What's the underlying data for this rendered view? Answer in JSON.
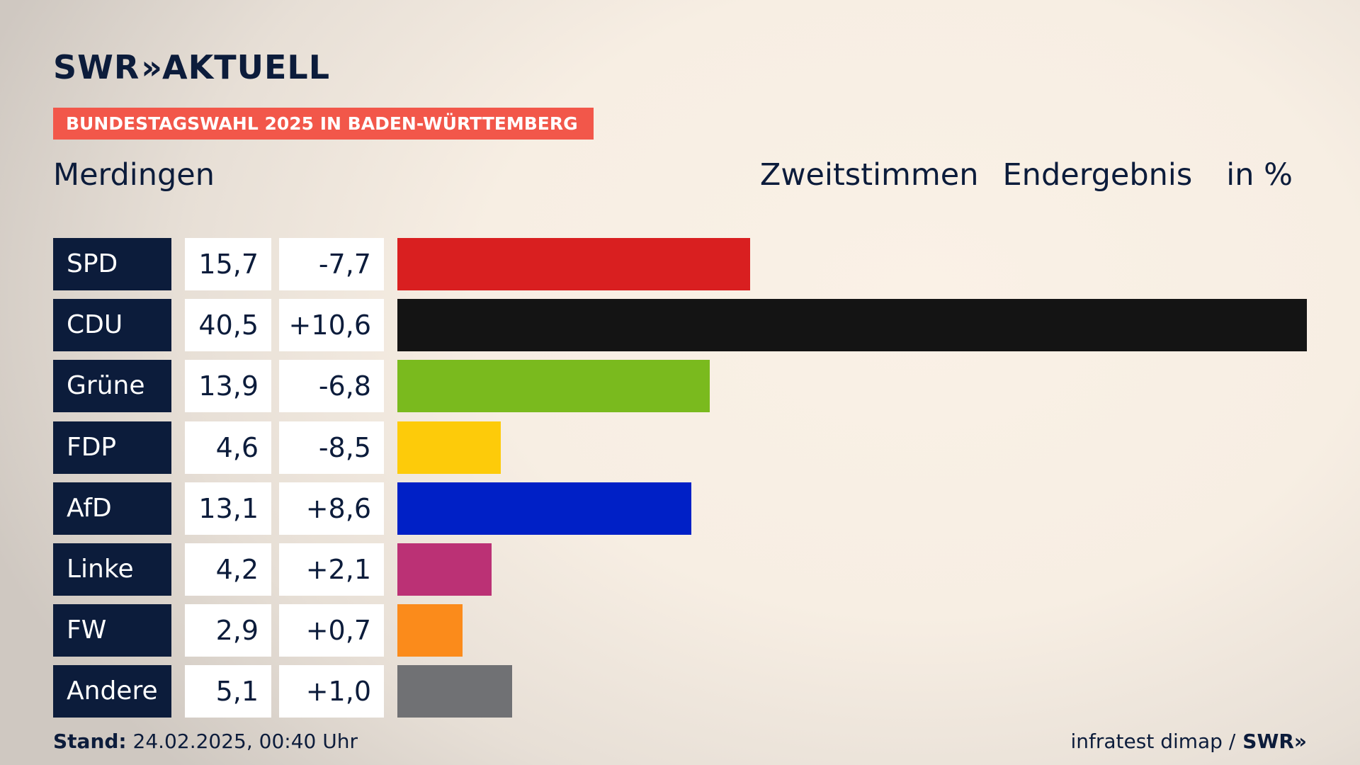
{
  "brand": {
    "logo_left": "SWR",
    "logo_chevron": "»",
    "logo_right": "AKTUELL"
  },
  "badge": "BUNDESTAGSWAHL 2025 IN BADEN-WÜRTTEMBERG",
  "place": "Merdingen",
  "heading": {
    "vote": "Zweitstimmen",
    "status": "Endergebnis",
    "unit": "in %"
  },
  "footer": {
    "stand_label": "Stand:",
    "stand_value": "24.02.2025, 00:40 Uhr",
    "source": "infratest dimap /",
    "source_logo": "SWR»"
  },
  "chart_data": {
    "type": "bar",
    "orientation": "horizontal",
    "unit": "%",
    "xlim": [
      0,
      40.5
    ],
    "categories": [
      "SPD",
      "CDU",
      "Grüne",
      "FDP",
      "AfD",
      "Linke",
      "FW",
      "Andere"
    ],
    "values": [
      15.7,
      40.5,
      13.9,
      4.6,
      13.1,
      4.2,
      2.9,
      5.1
    ],
    "value_labels": [
      "15,7",
      "40,5",
      "13,9",
      "4,6",
      "13,1",
      "4,2",
      "2,9",
      "5,1"
    ],
    "diff_labels": [
      "-7,7",
      "+10,6",
      "-6,8",
      "-8,5",
      "+8,6",
      "+2,1",
      "+0,7",
      "+1,0"
    ],
    "colors": [
      "#d91f20",
      "#141414",
      "#7aba1e",
      "#fdcb0a",
      "#0020c6",
      "#bb3175",
      "#fb8b1b",
      "#707174"
    ]
  }
}
